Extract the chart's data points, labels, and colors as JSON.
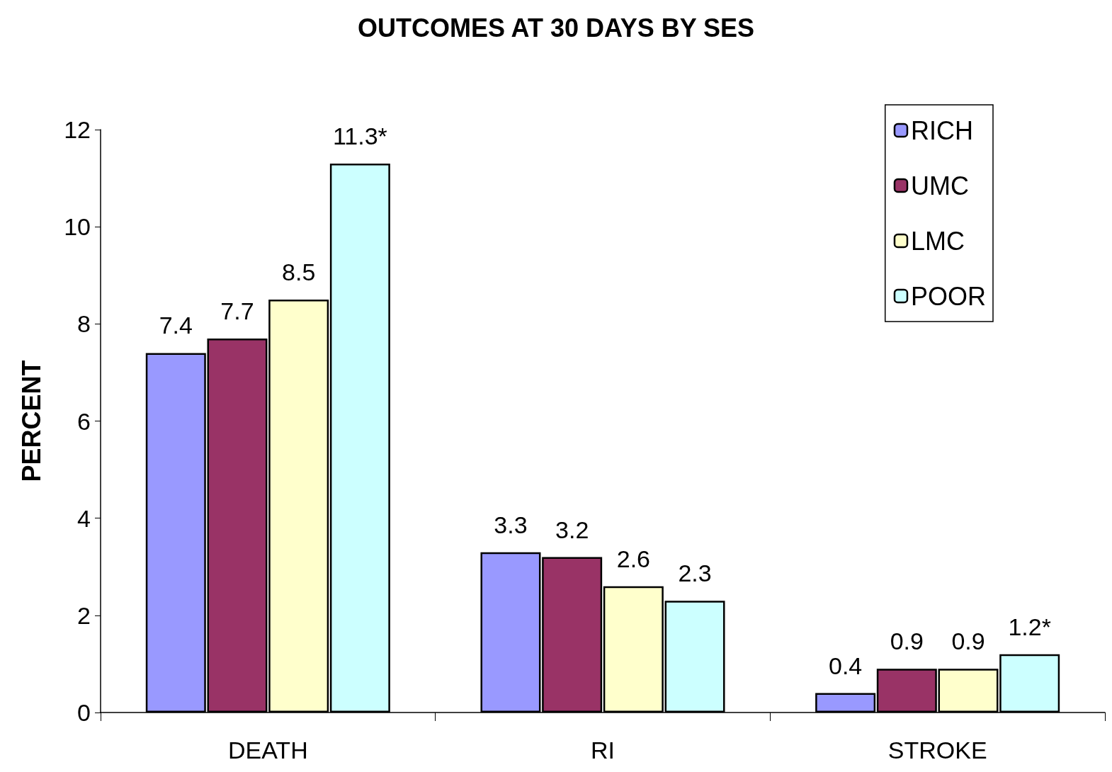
{
  "chart_data": {
    "type": "bar",
    "title": "OUTCOMES AT 30 DAYS BY SES",
    "ylabel": "PERCENT",
    "categories": [
      "DEATH",
      "RI",
      "STROKE"
    ],
    "series": [
      {
        "name": "RICH",
        "color": "#9999ff",
        "values": [
          7.4,
          3.3,
          0.4
        ],
        "value_labels": [
          "7.4",
          "3.3",
          "0.4"
        ]
      },
      {
        "name": "UMC",
        "color": "#993366",
        "values": [
          7.7,
          3.2,
          0.9
        ],
        "value_labels": [
          "7.7",
          "3.2",
          "0.9"
        ]
      },
      {
        "name": "LMC",
        "color": "#ffffcc",
        "values": [
          8.5,
          2.6,
          0.9
        ],
        "value_labels": [
          "8.5",
          "2.6",
          "0.9"
        ]
      },
      {
        "name": "POOR",
        "color": "#ccffff",
        "values": [
          11.3,
          2.3,
          1.2
        ],
        "value_labels": [
          "11.3*",
          "2.3",
          "1.2*"
        ]
      }
    ],
    "ylim": [
      0,
      12
    ],
    "yticks": [
      0,
      2,
      4,
      6,
      8,
      10,
      12
    ],
    "grid": false,
    "legend": "top right"
  }
}
